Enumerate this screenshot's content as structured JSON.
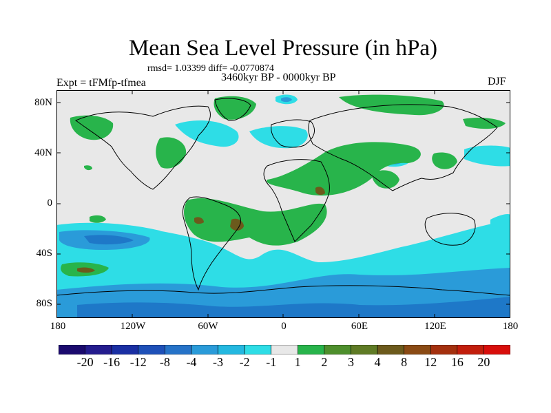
{
  "title": "Mean Sea Level Pressure (in hPa)",
  "stats_label": "rmsd= 1.03399 diff= -0.0770874",
  "experiment_label": "Expt = tFMfp-tfmea",
  "period_label": "3460kyr BP - 0000kyr BP",
  "season_label": "DJF",
  "lat_labels": [
    "80N",
    "40N",
    "0",
    "40S",
    "80S"
  ],
  "lon_labels": [
    "180",
    "120W",
    "60W",
    "0",
    "60E",
    "120E",
    "180"
  ],
  "colorbar": {
    "colors": [
      "#1b0a6e",
      "#241c8e",
      "#1a2fa3",
      "#1e50b8",
      "#2673c8",
      "#2a9bd9",
      "#24b8e0",
      "#2edde6",
      "#e8e8e8",
      "#28b44b",
      "#4e8f2c",
      "#5f7b25",
      "#6c5a1c",
      "#8a4a14",
      "#a4300e",
      "#c21e0c",
      "#d80e0b"
    ],
    "tick_labels": [
      "-20",
      "-16",
      "-12",
      "-8",
      "-4",
      "-3",
      "-2",
      "-1",
      "1",
      "2",
      "3",
      "4",
      "8",
      "12",
      "16",
      "20"
    ]
  },
  "colors": {
    "background": "#e8e8e8",
    "pos_1_2": "#28b44b",
    "pos_3_4": "#6c5a1c",
    "neg_1_2": "#2edde6",
    "neg_2_3": "#2a9bd9",
    "neg_3_4": "#1e78c8"
  }
}
